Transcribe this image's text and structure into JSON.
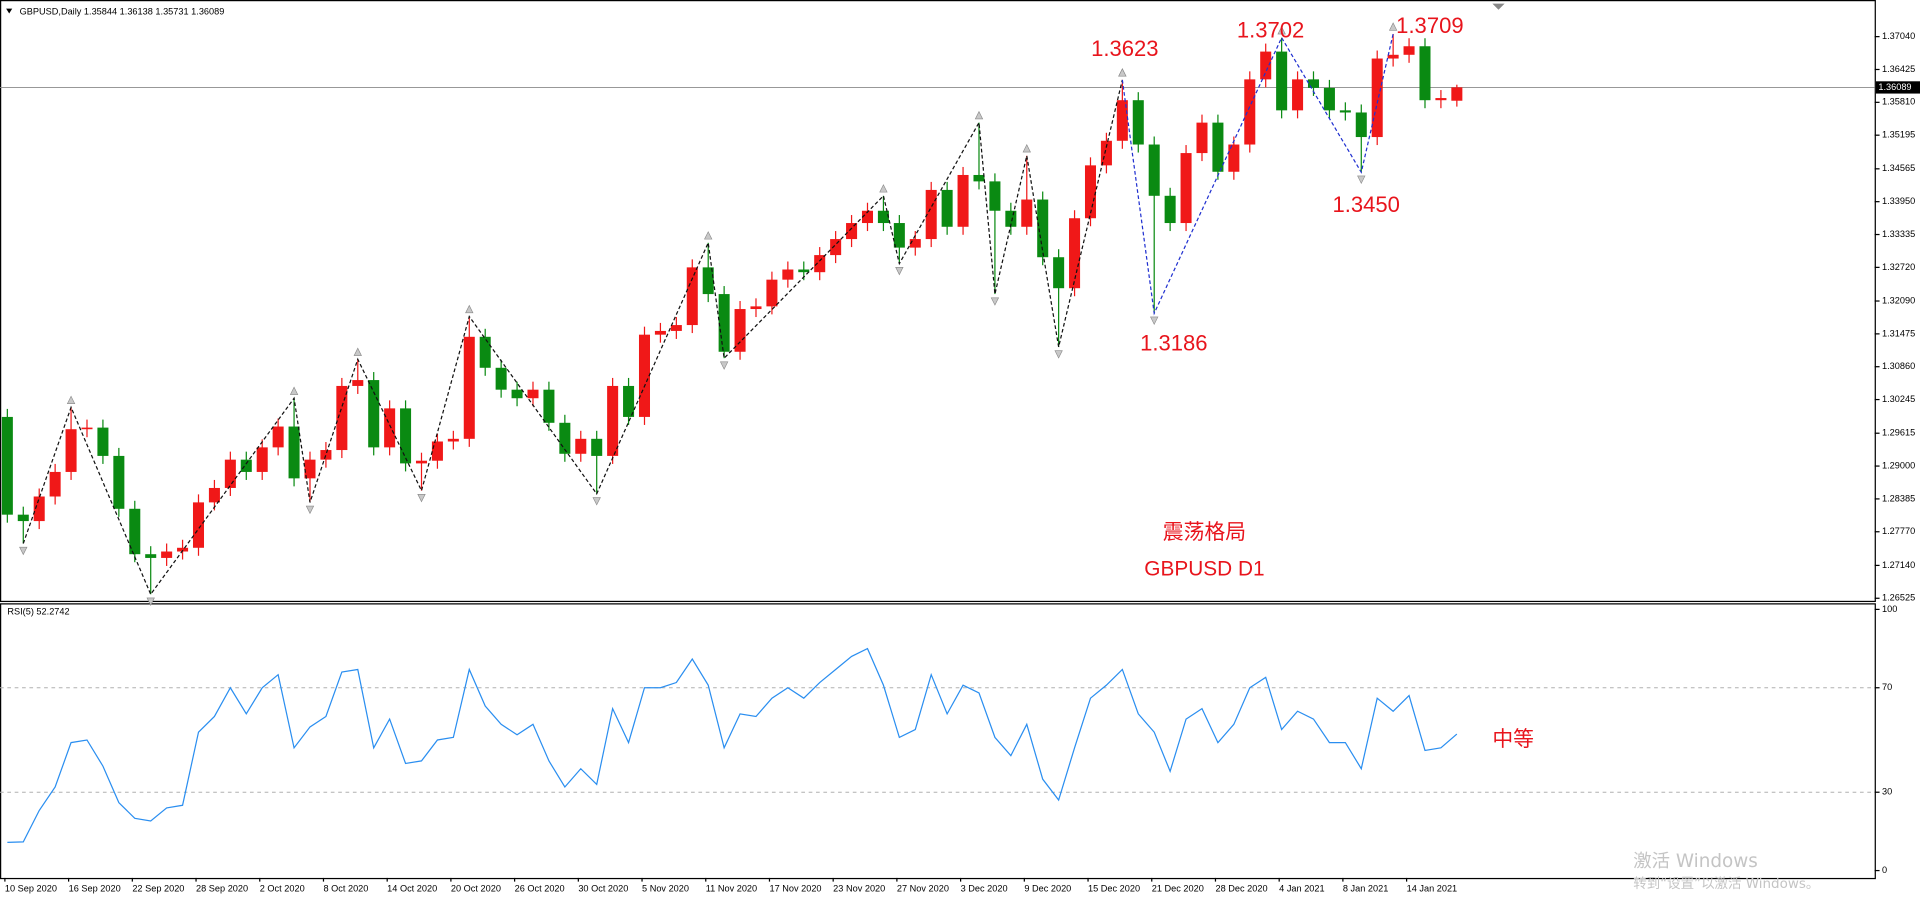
{
  "chart_data": {
    "type": "candlestick",
    "title": "GBPUSD,Daily  1.35844 1.36138 1.35731 1.36089",
    "categories": [
      "10 Sep 2020",
      null,
      null,
      null,
      "16 Sep 2020",
      null,
      null,
      null,
      "22 Sep 2020",
      null,
      null,
      null,
      "28 Sep 2020",
      null,
      null,
      null,
      "2 Oct 2020",
      null,
      null,
      null,
      "8 Oct 2020",
      null,
      null,
      null,
      "14 Oct 2020",
      null,
      null,
      null,
      "20 Oct 2020",
      null,
      null,
      null,
      "26 Oct 2020",
      null,
      null,
      null,
      "30 Oct 2020",
      null,
      null,
      null,
      "5 Nov 2020",
      null,
      null,
      null,
      "11 Nov 2020",
      null,
      null,
      null,
      "17 Nov 2020",
      null,
      null,
      null,
      "23 Nov 2020",
      null,
      null,
      null,
      "27 Nov 2020",
      null,
      null,
      null,
      "3 Dec 2020",
      null,
      null,
      null,
      "9 Dec 2020",
      null,
      null,
      null,
      "15 Dec 2020",
      null,
      null,
      null,
      "21 Dec 2020",
      null,
      null,
      null,
      "28 Dec 2020",
      null,
      null,
      null,
      "4 Jan 2021",
      null,
      null,
      null,
      "8 Jan 2021",
      null,
      null,
      null,
      "14 Jan 2021",
      null,
      null,
      null
    ],
    "open": [
      1.2992,
      1.2809,
      1.2797,
      1.2843,
      1.2889,
      1.2969,
      1.2972,
      1.2919,
      1.282,
      1.2735,
      1.2728,
      1.274,
      1.2747,
      1.2832,
      1.2859,
      1.2912,
      1.2889,
      1.2935,
      1.2974,
      1.2877,
      1.2912,
      1.293,
      1.305,
      1.3061,
      1.2935,
      1.3008,
      1.2905,
      1.291,
      1.2946,
      1.2951,
      1.3142,
      1.3084,
      1.3043,
      1.3027,
      1.3043,
      1.2981,
      1.2923,
      1.2951,
      1.2919,
      1.305,
      1.2992,
      1.3146,
      1.3153,
      1.3164,
      1.3272,
      1.3222,
      1.3114,
      1.3194,
      1.3199,
      1.3249,
      1.3268,
      1.3263,
      1.3295,
      1.3325,
      1.3355,
      1.3378,
      1.3355,
      1.3309,
      1.3325,
      1.3417,
      1.3348,
      1.3445,
      1.3433,
      1.3378,
      1.3348,
      1.3399,
      1.3291,
      1.3233,
      1.3364,
      1.3463,
      1.3509,
      1.3585,
      1.3502,
      1.3406,
      1.3355,
      1.3486,
      1.3543,
      1.3451,
      1.3502,
      1.3624,
      1.3676,
      1.3566,
      1.3624,
      1.3608,
      1.3566,
      1.3562,
      1.3516,
      1.3663,
      1.367,
      1.3686,
      1.3585,
      1.3584
    ],
    "high": [
      1.3007,
      1.2824,
      1.2858,
      1.2904,
      1.301,
      1.2987,
      1.2987,
      1.2934,
      1.2835,
      1.275,
      1.2755,
      1.2762,
      1.2847,
      1.2874,
      1.2927,
      1.2927,
      1.295,
      1.2989,
      1.3027,
      1.2927,
      1.2945,
      1.3065,
      1.31,
      1.3076,
      1.3023,
      1.3023,
      1.2925,
      1.2961,
      1.2966,
      1.318,
      1.3157,
      1.3099,
      1.3058,
      1.3058,
      1.3058,
      1.2996,
      1.2966,
      1.2966,
      1.3065,
      1.3065,
      1.3161,
      1.3168,
      1.3179,
      1.3287,
      1.3318,
      1.3237,
      1.3209,
      1.3214,
      1.3264,
      1.3283,
      1.3283,
      1.331,
      1.334,
      1.337,
      1.3393,
      1.3406,
      1.337,
      1.334,
      1.3432,
      1.3432,
      1.346,
      1.3543,
      1.3448,
      1.3393,
      1.3481,
      1.3414,
      1.3306,
      1.3379,
      1.3478,
      1.3524,
      1.3623,
      1.36,
      1.3517,
      1.3421,
      1.3501,
      1.3558,
      1.3558,
      1.3517,
      1.3639,
      1.3691,
      1.3702,
      1.3639,
      1.3639,
      1.3623,
      1.3581,
      1.3577,
      1.3678,
      1.3709,
      1.3701,
      1.3701,
      1.3604,
      1.3614
    ],
    "low": [
      1.2794,
      1.2755,
      1.2782,
      1.2828,
      1.2874,
      1.2954,
      1.2904,
      1.2805,
      1.272,
      1.266,
      1.2713,
      1.2725,
      1.2732,
      1.2817,
      1.2844,
      1.2874,
      1.2874,
      1.292,
      1.2862,
      1.2832,
      1.2897,
      1.2915,
      1.3035,
      1.292,
      1.292,
      1.289,
      1.2854,
      1.2895,
      1.2931,
      1.2936,
      1.3069,
      1.3028,
      1.3012,
      1.3012,
      1.2966,
      1.2908,
      1.2908,
      1.2848,
      1.2904,
      1.2977,
      1.2977,
      1.3131,
      1.3138,
      1.3149,
      1.3207,
      1.3102,
      1.3099,
      1.3179,
      1.3184,
      1.3234,
      1.3248,
      1.3248,
      1.328,
      1.331,
      1.334,
      1.334,
      1.3279,
      1.3294,
      1.331,
      1.3333,
      1.3333,
      1.3418,
      1.3222,
      1.3333,
      1.3333,
      1.3276,
      1.3123,
      1.3218,
      1.3349,
      1.3448,
      1.3494,
      1.3487,
      1.3186,
      1.334,
      1.334,
      1.3471,
      1.3436,
      1.3436,
      1.3487,
      1.3609,
      1.3551,
      1.3551,
      1.3593,
      1.3551,
      1.3547,
      1.345,
      1.3501,
      1.3648,
      1.3655,
      1.357,
      1.357,
      1.3573
    ],
    "close": [
      1.2809,
      1.2797,
      1.2843,
      1.2889,
      1.2969,
      1.2972,
      1.2919,
      1.282,
      1.2735,
      1.2728,
      1.274,
      1.2747,
      1.2832,
      1.2859,
      1.2912,
      1.2889,
      1.2935,
      1.2974,
      1.2877,
      1.2912,
      1.293,
      1.305,
      1.3061,
      1.2935,
      1.3008,
      1.2905,
      1.291,
      1.2946,
      1.2951,
      1.3142,
      1.3084,
      1.3043,
      1.3027,
      1.3043,
      1.2981,
      1.2923,
      1.2951,
      1.2919,
      1.305,
      1.2992,
      1.3146,
      1.3153,
      1.3164,
      1.3272,
      1.3222,
      1.3114,
      1.3194,
      1.3199,
      1.3249,
      1.3268,
      1.3263,
      1.3295,
      1.3325,
      1.3355,
      1.3378,
      1.3355,
      1.3309,
      1.3325,
      1.3417,
      1.3348,
      1.3445,
      1.3433,
      1.3378,
      1.3348,
      1.3399,
      1.3291,
      1.3233,
      1.3364,
      1.3463,
      1.3509,
      1.3585,
      1.3502,
      1.3406,
      1.3355,
      1.3486,
      1.3543,
      1.3451,
      1.3502,
      1.3624,
      1.3676,
      1.3566,
      1.3624,
      1.3608,
      1.3566,
      1.3562,
      1.3516,
      1.3663,
      1.367,
      1.3686,
      1.3585,
      1.3589,
      1.3609
    ],
    "up_color": "#f01818",
    "down_color": "#0a8a12",
    "ylim": [
      1.265,
      1.3768
    ],
    "yticks": [
      {
        "value": 1.3704,
        "label": "1.37040"
      },
      1.36425,
      {
        "value": 1.3581,
        "label": "1.35810"
      },
      1.35195,
      1.34565,
      {
        "value": 1.3395,
        "label": "1.33950"
      },
      1.33335,
      {
        "value": 1.3272,
        "label": "1.32720"
      },
      {
        "value": 1.3209,
        "label": "1.32090"
      },
      1.31475,
      {
        "value": 1.3086,
        "label": "1.30860"
      },
      1.30245,
      1.29615,
      {
        "value": 1.29,
        "label": "1.29000"
      },
      1.28385,
      {
        "value": 1.2777,
        "label": "1.27770"
      },
      {
        "value": 1.2714,
        "label": "1.27140"
      },
      1.26525
    ],
    "last_price": {
      "value": 1.36089,
      "label": "1.36089"
    },
    "zigzags": [
      {
        "color": "#111111",
        "bars": [
          1,
          4,
          9,
          18,
          19,
          22,
          26,
          29,
          37,
          44,
          45,
          55,
          56,
          61,
          62,
          64,
          66,
          70
        ],
        "values": [
          1.2755,
          1.301,
          1.266,
          1.3027,
          1.2832,
          1.31,
          1.2854,
          1.318,
          1.2848,
          1.3318,
          1.3102,
          1.3406,
          1.3279,
          1.3543,
          1.3222,
          1.3481,
          1.3123,
          1.3623
        ]
      },
      {
        "color": "#2030d0",
        "bars": [
          70,
          72,
          80,
          85,
          87
        ],
        "values": [
          1.3623,
          1.3186,
          1.3702,
          1.345,
          1.3709
        ]
      }
    ],
    "annotations": [
      "1.3623",
      "1.3702",
      "1.3709",
      "1.3186",
      "1.3450",
      "震荡格局",
      "GBPUSD D1",
      "中等"
    ],
    "annotation_color": "#e8141c",
    "indicator": {
      "label": "RSI(5) 52.2742",
      "color": "#2a8ef0",
      "values": [
        10.8,
        11,
        23,
        32,
        49,
        50,
        40,
        26,
        20,
        19,
        24,
        25,
        53,
        59,
        70,
        60,
        70,
        75,
        47,
        55,
        59,
        76,
        77,
        47,
        58,
        41,
        42,
        50,
        51,
        77,
        63,
        56,
        52,
        56,
        42,
        32,
        39,
        33,
        62,
        49,
        70,
        70,
        72,
        81,
        71,
        47,
        60,
        59,
        66,
        70,
        66,
        72,
        77,
        82,
        85,
        71,
        51,
        54,
        75,
        60,
        71,
        68,
        51,
        44,
        56,
        35,
        27,
        47,
        66,
        71,
        77,
        60,
        53,
        38,
        58,
        62,
        49,
        56,
        70,
        74,
        54,
        61,
        58,
        49,
        49,
        39,
        66,
        61,
        67,
        46,
        47,
        52.2742
      ],
      "ylim": [
        0,
        100
      ],
      "yticks": [
        0,
        30,
        70,
        100
      ],
      "levels": [
        30,
        70
      ]
    },
    "overlay": [
      "激活 Windows",
      "转到“设置”以激活 Windows。"
    ]
  }
}
